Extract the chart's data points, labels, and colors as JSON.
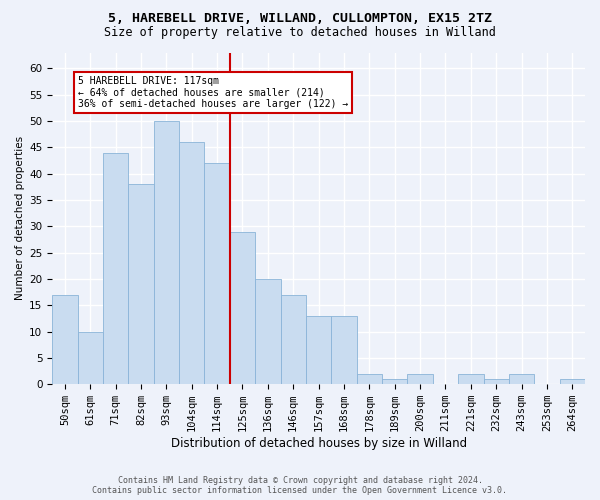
{
  "title1": "5, HAREBELL DRIVE, WILLAND, CULLOMPTON, EX15 2TZ",
  "title2": "Size of property relative to detached houses in Willand",
  "xlabel": "Distribution of detached houses by size in Willand",
  "ylabel": "Number of detached properties",
  "categories": [
    "50sqm",
    "61sqm",
    "71sqm",
    "82sqm",
    "93sqm",
    "104sqm",
    "114sqm",
    "125sqm",
    "136sqm",
    "146sqm",
    "157sqm",
    "168sqm",
    "178sqm",
    "189sqm",
    "200sqm",
    "211sqm",
    "221sqm",
    "232sqm",
    "243sqm",
    "253sqm",
    "264sqm"
  ],
  "values": [
    17,
    10,
    44,
    38,
    50,
    46,
    42,
    29,
    20,
    17,
    13,
    13,
    2,
    1,
    2,
    0,
    2,
    1,
    2,
    0,
    1
  ],
  "bar_color": "#c9dcf0",
  "bar_edge_color": "#8ab4d8",
  "annotation_line1": "5 HAREBELL DRIVE: 117sqm",
  "annotation_line2": "← 64% of detached houses are smaller (214)",
  "annotation_line3": "36% of semi-detached houses are larger (122) →",
  "red_line_color": "#cc0000",
  "annotation_box_color": "#ffffff",
  "annotation_box_edge": "#cc0000",
  "ylim": [
    0,
    63
  ],
  "yticks": [
    0,
    5,
    10,
    15,
    20,
    25,
    30,
    35,
    40,
    45,
    50,
    55,
    60
  ],
  "footer1": "Contains HM Land Registry data © Crown copyright and database right 2024.",
  "footer2": "Contains public sector information licensed under the Open Government Licence v3.0.",
  "background_color": "#eef2fa",
  "grid_color": "#ffffff",
  "title1_fontsize": 9.5,
  "title2_fontsize": 8.5,
  "xlabel_fontsize": 8.5,
  "ylabel_fontsize": 7.5,
  "tick_fontsize": 7.5,
  "annotation_fontsize": 7,
  "footer_fontsize": 6,
  "red_line_x": 6.5
}
